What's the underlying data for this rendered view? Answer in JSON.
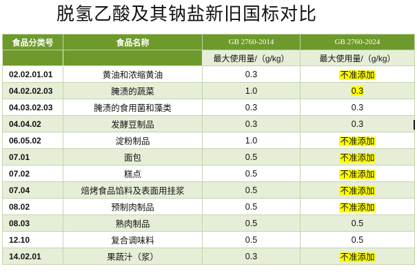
{
  "title": "脱氢乙酸及其钠盐新旧国标对比",
  "columns": {
    "code": "食品分类号",
    "name": "食品名称",
    "old_std": "GB 2760-2014",
    "new_std": "GB 2760-2024",
    "old_unit": "最大使用量/（g/kg）",
    "new_unit": "最大使用量/（g/kg）"
  },
  "rows": [
    {
      "code": "02.02.01.01",
      "name": "黄油和浓缩黄油",
      "old": "0.3",
      "new": "不准添加",
      "new_highlight": true
    },
    {
      "code": "04.02.02.03",
      "name": "腌渍的蔬菜",
      "old": "1.0",
      "new": "0.3",
      "new_highlight": true
    },
    {
      "code": "04.03.02.03",
      "name": "腌渍的食用菌和藻类",
      "old": "0.3",
      "new": "0.3",
      "new_highlight": false
    },
    {
      "code": "04.04.02",
      "name": "发酵豆制品",
      "old": "0.3",
      "new": "0.3",
      "new_highlight": false
    },
    {
      "code": "06.05.02",
      "name": "淀粉制品",
      "old": "1.0",
      "new": "不准添加",
      "new_highlight": true
    },
    {
      "code": "07.01",
      "name": "面包",
      "old": "0.5",
      "new": "不准添加",
      "new_highlight": true
    },
    {
      "code": "07.02",
      "name": "糕点",
      "old": "0.5",
      "new": "不准添加",
      "new_highlight": true
    },
    {
      "code": "07.04",
      "name": "焙烤食品馅料及表面用挂浆",
      "old": "0.5",
      "new": "不准添加",
      "new_highlight": true
    },
    {
      "code": "08.02",
      "name": "预制肉制品",
      "old": "0.5",
      "new": "不准添加",
      "new_highlight": true
    },
    {
      "code": "08.03",
      "name": "熟肉制品",
      "old": "0.5",
      "new": "0.5",
      "new_highlight": false
    },
    {
      "code": "12.10",
      "name": "复合调味料",
      "old": "0.5",
      "new": "0.5",
      "new_highlight": false
    },
    {
      "code": "14.02.01",
      "name": "果蔬汁（浆）",
      "old": "0.3",
      "new": "不准添加",
      "new_highlight": true
    }
  ],
  "colors": {
    "header_green": "#6e9a2c",
    "row_tint": "#e6eed8",
    "highlight": "#ffff00"
  }
}
